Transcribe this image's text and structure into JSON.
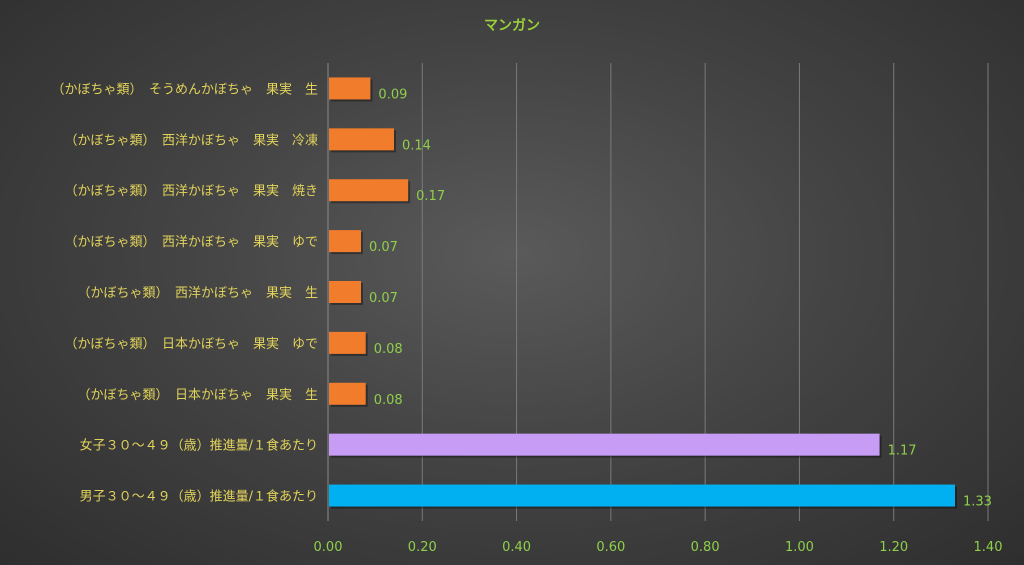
{
  "chart_data": {
    "type": "bar",
    "orientation": "horizontal",
    "title": "マンガン",
    "categories": [
      "（かぼちゃ類）　そうめんかぼちゃ　果実　生",
      "（かぼちゃ類）　西洋かぼちゃ　果実　冷凍",
      "（かぼちゃ類）　西洋かぼちゃ　果実　焼き",
      "（かぼちゃ類）　西洋かぼちゃ　果実　ゆで",
      "（かぼちゃ類）　西洋かぼちゃ　果実　生",
      "（かぼちゃ類）　日本かぼちゃ　果実　ゆで",
      "（かぼちゃ類）　日本かぼちゃ　果実　生",
      "女子３０～４９（歳）推進量/１食あたり",
      "男子３０～４９（歳）推進量/１食あたり"
    ],
    "values": [
      0.09,
      0.14,
      0.17,
      0.07,
      0.07,
      0.08,
      0.08,
      1.17,
      1.33
    ],
    "value_labels": [
      "0.09",
      "0.14",
      "0.17",
      "0.07",
      "0.07",
      "0.08",
      "0.08",
      "1.17",
      "1.33"
    ],
    "bar_colors": [
      "#f07c2c",
      "#f07c2c",
      "#f07c2c",
      "#f07c2c",
      "#f07c2c",
      "#f07c2c",
      "#f07c2c",
      "#c79cf5",
      "#00b0f0"
    ],
    "xlim": [
      0,
      1.4
    ],
    "xticks": [
      "0.00",
      "0.20",
      "0.40",
      "0.60",
      "0.80",
      "1.00",
      "1.20",
      "1.40"
    ],
    "xtick_values": [
      0,
      0.2,
      0.4,
      0.6,
      0.8,
      1.0,
      1.2,
      1.4
    ],
    "grid": true,
    "legend": "none"
  }
}
